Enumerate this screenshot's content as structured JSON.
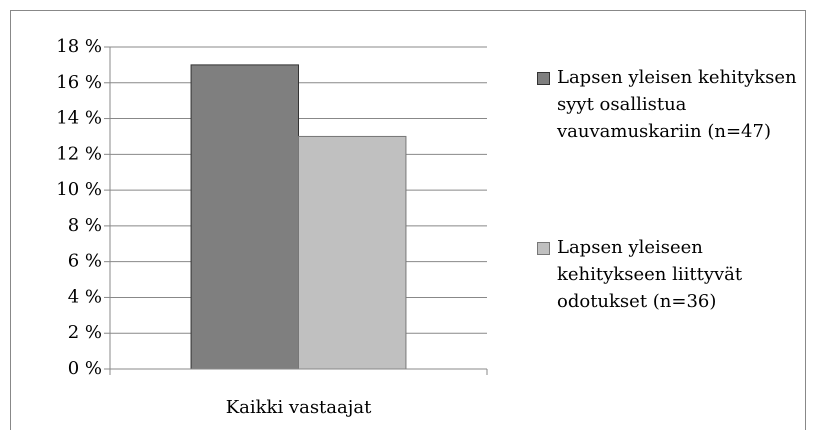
{
  "chart_data": {
    "type": "bar",
    "categories": [
      "Kaikki vastaajat"
    ],
    "series": [
      {
        "name": "Lapsen yleisen kehityksen syyt osallistua vauvamuskariin (n=47)",
        "color": "#7f7f7f",
        "values": [
          17
        ]
      },
      {
        "name": "Lapsen yleiseen kehitykseen liittyvät odotukset (n=36)",
        "color": "#c0c0c0",
        "values": [
          13
        ]
      }
    ],
    "ylim": [
      0,
      18
    ],
    "yticks": [
      {
        "value": 0,
        "label": "0 %"
      },
      {
        "value": 2,
        "label": "2 %"
      },
      {
        "value": 4,
        "label": "4 %"
      },
      {
        "value": 6,
        "label": "6 %"
      },
      {
        "value": 8,
        "label": "8 %"
      },
      {
        "value": 10,
        "label": "10 %"
      },
      {
        "value": 12,
        "label": "12 %"
      },
      {
        "value": 14,
        "label": "14 %"
      },
      {
        "value": 16,
        "label": "16 %"
      },
      {
        "value": 18,
        "label": "18 %"
      }
    ],
    "grid": true,
    "legend": "right"
  }
}
